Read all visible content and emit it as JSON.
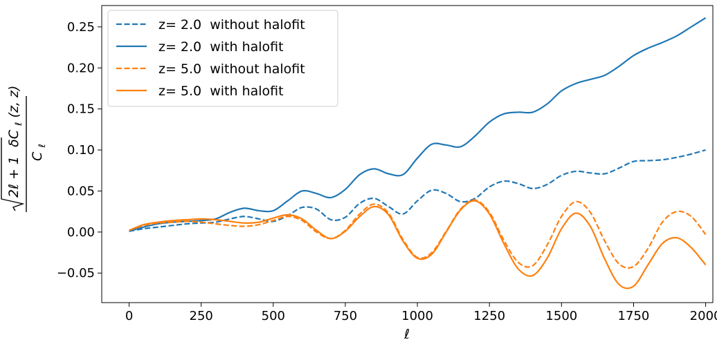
{
  "chart_data": {
    "type": "line",
    "title": "",
    "xlabel": "ℓ",
    "ylabel": {
      "sqrt_content": "2ℓ + 1",
      "numerator_rest": "δC",
      "numerator_sub": "ℓ",
      "numerator_args": "(z, z)",
      "denominator": "C",
      "denominator_sub": "ℓ"
    },
    "xlim": [
      -95,
      2025
    ],
    "ylim": [
      -0.086,
      0.276
    ],
    "xticks": [
      0,
      250,
      500,
      750,
      1000,
      1250,
      1500,
      1750,
      2000
    ],
    "xtick_labels": [
      "0",
      "250",
      "500",
      "750",
      "1000",
      "1250",
      "1500",
      "1750",
      "2000"
    ],
    "yticks": [
      -0.05,
      0.0,
      0.05,
      0.1,
      0.15,
      0.2,
      0.25
    ],
    "ytick_labels": [
      "−0.05",
      "0.00",
      "0.05",
      "0.10",
      "0.15",
      "0.20",
      "0.25"
    ],
    "grid": false,
    "legend_position": "upper-left",
    "series": [
      {
        "name": "z= 2.0  without halofit",
        "color": "#1f77b4",
        "dash": "dashed",
        "x": [
          0,
          50,
          100,
          150,
          200,
          250,
          300,
          350,
          400,
          450,
          500,
          550,
          600,
          650,
          700,
          750,
          800,
          850,
          900,
          950,
          1000,
          1050,
          1100,
          1150,
          1200,
          1250,
          1300,
          1350,
          1400,
          1450,
          1500,
          1550,
          1600,
          1650,
          1700,
          1750,
          1800,
          1850,
          1900,
          1950,
          2000
        ],
        "y": [
          0.001,
          0.004,
          0.006,
          0.008,
          0.01,
          0.011,
          0.012,
          0.016,
          0.019,
          0.016,
          0.013,
          0.02,
          0.03,
          0.028,
          0.015,
          0.018,
          0.035,
          0.041,
          0.031,
          0.022,
          0.038,
          0.051,
          0.047,
          0.037,
          0.041,
          0.055,
          0.062,
          0.059,
          0.053,
          0.058,
          0.069,
          0.074,
          0.072,
          0.071,
          0.078,
          0.086,
          0.087,
          0.088,
          0.091,
          0.095,
          0.1
        ]
      },
      {
        "name": "z= 2.0  with halofit",
        "color": "#1f77b4",
        "dash": "solid",
        "x": [
          0,
          50,
          100,
          150,
          200,
          250,
          300,
          350,
          400,
          450,
          500,
          550,
          600,
          650,
          700,
          750,
          800,
          850,
          900,
          950,
          1000,
          1050,
          1100,
          1150,
          1200,
          1250,
          1300,
          1350,
          1400,
          1450,
          1500,
          1550,
          1600,
          1650,
          1700,
          1750,
          1800,
          1850,
          1900,
          1950,
          2000
        ],
        "y": [
          0.001,
          0.006,
          0.01,
          0.012,
          0.013,
          0.014,
          0.016,
          0.024,
          0.029,
          0.026,
          0.026,
          0.038,
          0.05,
          0.047,
          0.042,
          0.052,
          0.07,
          0.077,
          0.071,
          0.07,
          0.09,
          0.107,
          0.106,
          0.104,
          0.117,
          0.134,
          0.144,
          0.146,
          0.146,
          0.156,
          0.172,
          0.181,
          0.186,
          0.191,
          0.202,
          0.215,
          0.224,
          0.231,
          0.239,
          0.25,
          0.261
        ]
      },
      {
        "name": "z= 5.0  without halofit",
        "color": "#ff7f0e",
        "dash": "dashed",
        "x": [
          0,
          50,
          100,
          150,
          200,
          250,
          300,
          350,
          400,
          450,
          500,
          550,
          600,
          650,
          700,
          750,
          800,
          850,
          900,
          950,
          1000,
          1050,
          1100,
          1150,
          1200,
          1250,
          1300,
          1350,
          1400,
          1450,
          1500,
          1550,
          1600,
          1650,
          1700,
          1750,
          1800,
          1850,
          1900,
          1950,
          2000
        ],
        "y": [
          0.002,
          0.008,
          0.011,
          0.012,
          0.013,
          0.012,
          0.01,
          0.008,
          0.007,
          0.009,
          0.014,
          0.019,
          0.014,
          0.0,
          -0.008,
          0.002,
          0.022,
          0.034,
          0.023,
          -0.009,
          -0.031,
          -0.025,
          0.001,
          0.028,
          0.039,
          0.024,
          -0.01,
          -0.037,
          -0.041,
          -0.016,
          0.019,
          0.037,
          0.024,
          -0.011,
          -0.039,
          -0.042,
          -0.02,
          0.012,
          0.025,
          0.019,
          -0.003
        ]
      },
      {
        "name": "z= 5.0  with halofit",
        "color": "#ff7f0e",
        "dash": "solid",
        "x": [
          0,
          50,
          100,
          150,
          200,
          250,
          300,
          350,
          400,
          450,
          500,
          550,
          600,
          650,
          700,
          750,
          800,
          850,
          900,
          950,
          1000,
          1050,
          1100,
          1150,
          1200,
          1250,
          1300,
          1350,
          1400,
          1450,
          1500,
          1550,
          1600,
          1650,
          1700,
          1750,
          1800,
          1850,
          1900,
          1950,
          2000
        ],
        "y": [
          0.002,
          0.009,
          0.012,
          0.014,
          0.015,
          0.016,
          0.015,
          0.013,
          0.011,
          0.012,
          0.017,
          0.021,
          0.016,
          0.002,
          -0.008,
          0.001,
          0.019,
          0.031,
          0.021,
          -0.011,
          -0.032,
          -0.027,
          0.0,
          0.027,
          0.038,
          0.022,
          -0.014,
          -0.045,
          -0.053,
          -0.032,
          0.004,
          0.023,
          0.007,
          -0.033,
          -0.064,
          -0.066,
          -0.04,
          -0.014,
          -0.007,
          -0.019,
          -0.04
        ]
      }
    ]
  }
}
